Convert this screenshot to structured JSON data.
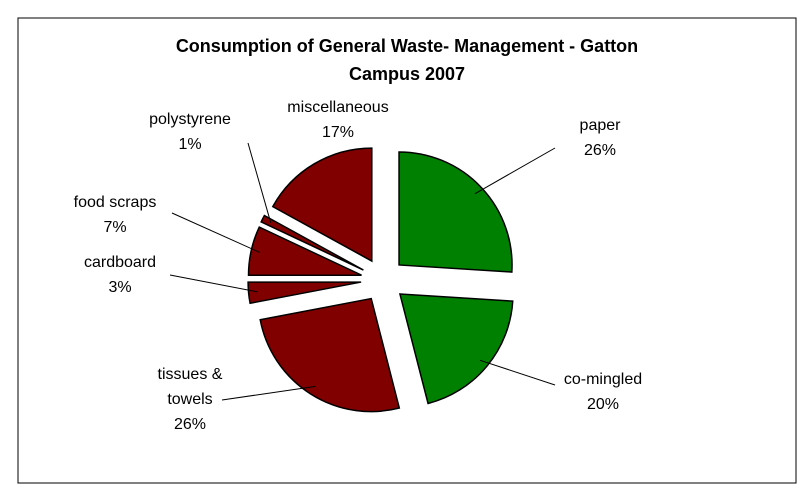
{
  "chart_data": {
    "type": "pie",
    "title": "Consumption of General Waste-  Management - Gatton Campus 2007",
    "categories": [
      "paper",
      "co-mingled",
      "tissues & towels",
      "cardboard",
      "food scraps",
      "polystyrene",
      "miscellaneous"
    ],
    "values": [
      26,
      20,
      26,
      3,
      7,
      1,
      17
    ],
    "value_labels": [
      "26%",
      "20%",
      "26%",
      "3%",
      "7%",
      "1%",
      "17%"
    ],
    "colors": [
      "#008000",
      "#008000",
      "#800000",
      "#800000",
      "#800000",
      "#800000",
      "#800000"
    ]
  }
}
